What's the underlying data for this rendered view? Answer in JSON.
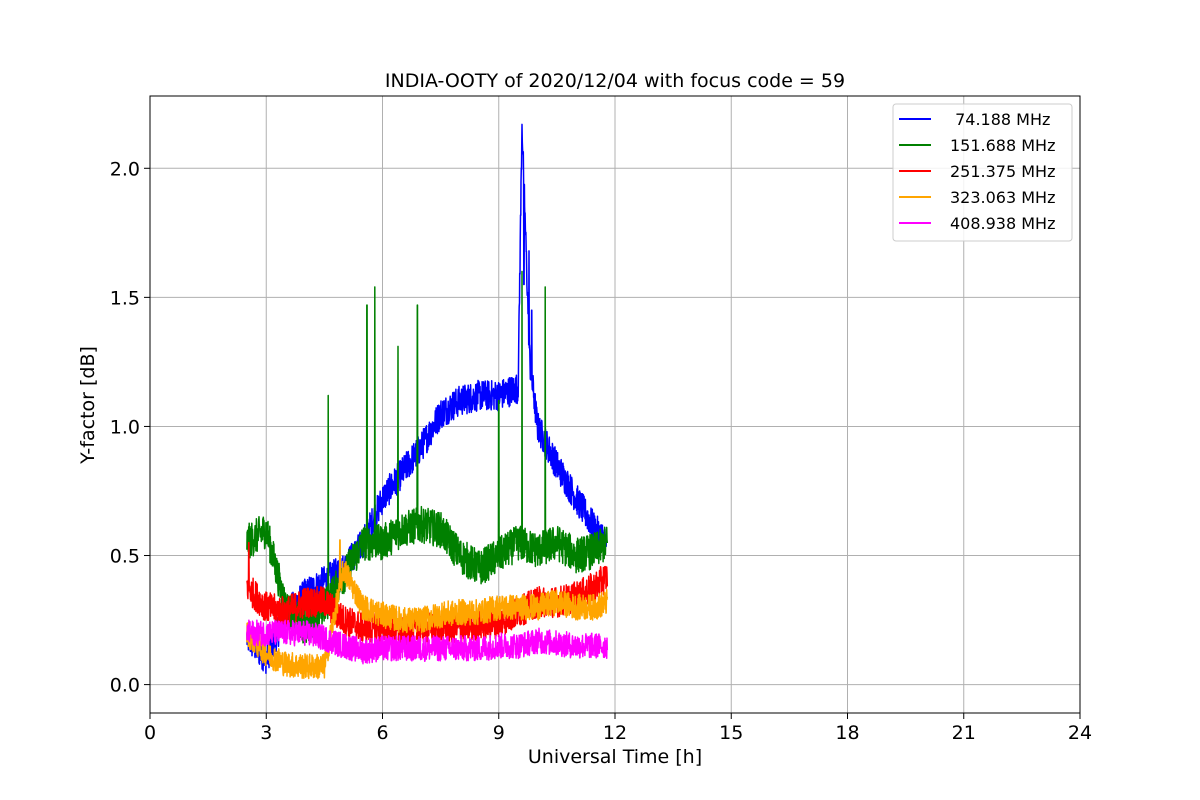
{
  "chart_data": {
    "type": "line",
    "title": "INDIA-OOTY of 2020/12/04 with focus code = 59",
    "xlabel": "Universal Time [h]",
    "ylabel": "Y-factor [dB]",
    "xlim": [
      0,
      24
    ],
    "ylim": [
      -0.11,
      2.28
    ],
    "xticks": [
      "0",
      "3",
      "6",
      "9",
      "12",
      "15",
      "18",
      "21",
      "24"
    ],
    "yticks": [
      "0.0",
      "0.5",
      "1.0",
      "1.5",
      "2.0"
    ],
    "grid": true,
    "legend_position": "top-right",
    "series": [
      {
        "name": " 74.188 MHz",
        "color": "#0000ff",
        "x": [
          2.5,
          3.0,
          3.5,
          4.0,
          4.5,
          5.0,
          5.5,
          6.0,
          6.5,
          7.0,
          7.5,
          8.0,
          8.5,
          9.0,
          9.5,
          9.6,
          9.8,
          10.0,
          10.5,
          11.0,
          11.5,
          11.8
        ],
        "y": [
          0.18,
          0.1,
          0.27,
          0.35,
          0.4,
          0.45,
          0.55,
          0.72,
          0.82,
          0.92,
          1.05,
          1.1,
          1.12,
          1.12,
          1.15,
          2.17,
          1.25,
          1.0,
          0.85,
          0.72,
          0.6,
          0.55
        ],
        "spikes": [
          [
            9.6,
            2.17
          ],
          [
            9.78,
            1.68
          ],
          [
            9.65,
            1.55
          ],
          [
            9.85,
            1.45
          ]
        ]
      },
      {
        "name": "151.688 MHz",
        "color": "#008000",
        "x": [
          2.5,
          3.0,
          3.5,
          4.0,
          4.5,
          5.0,
          5.5,
          6.0,
          6.5,
          7.0,
          7.5,
          8.0,
          8.5,
          9.0,
          9.5,
          10.0,
          10.5,
          11.0,
          11.5,
          11.8
        ],
        "y": [
          0.55,
          0.6,
          0.3,
          0.22,
          0.3,
          0.42,
          0.55,
          0.55,
          0.6,
          0.62,
          0.6,
          0.5,
          0.45,
          0.5,
          0.55,
          0.52,
          0.55,
          0.5,
          0.52,
          0.55
        ],
        "spikes": [
          [
            5.8,
            1.54
          ],
          [
            5.6,
            1.47
          ],
          [
            6.9,
            1.47
          ],
          [
            10.2,
            1.54
          ],
          [
            9.6,
            1.6
          ],
          [
            4.6,
            1.12
          ],
          [
            6.4,
            1.31
          ],
          [
            9.0,
            1.1
          ]
        ]
      },
      {
        "name": "251.375 MHz",
        "color": "#ff0000",
        "x": [
          2.5,
          3.0,
          3.5,
          4.0,
          4.5,
          5.0,
          5.5,
          6.0,
          6.5,
          7.0,
          7.5,
          8.0,
          8.5,
          9.0,
          9.5,
          10.0,
          10.5,
          11.0,
          11.5,
          11.8
        ],
        "y": [
          0.38,
          0.3,
          0.28,
          0.32,
          0.32,
          0.25,
          0.22,
          0.22,
          0.2,
          0.22,
          0.22,
          0.22,
          0.23,
          0.24,
          0.28,
          0.32,
          0.32,
          0.34,
          0.38,
          0.42
        ],
        "spikes": [
          [
            2.55,
            0.55
          ]
        ]
      },
      {
        "name": "323.063 MHz",
        "color": "#ffa500",
        "x": [
          2.5,
          3.0,
          3.5,
          4.0,
          4.5,
          5.0,
          5.5,
          6.0,
          6.5,
          7.0,
          7.5,
          8.0,
          8.5,
          9.0,
          9.5,
          10.0,
          10.5,
          11.0,
          11.5,
          11.8
        ],
        "y": [
          0.2,
          0.12,
          0.08,
          0.07,
          0.07,
          0.45,
          0.3,
          0.27,
          0.25,
          0.25,
          0.27,
          0.28,
          0.28,
          0.3,
          0.3,
          0.3,
          0.32,
          0.3,
          0.3,
          0.32
        ],
        "spikes": [
          [
            4.9,
            0.56
          ]
        ]
      },
      {
        "name": "408.938 MHz",
        "color": "#ff00ff",
        "x": [
          2.5,
          3.0,
          3.5,
          4.0,
          4.5,
          5.0,
          5.5,
          6.0,
          6.5,
          7.0,
          7.5,
          8.0,
          8.5,
          9.0,
          9.5,
          10.0,
          10.5,
          11.0,
          11.5,
          11.8
        ],
        "y": [
          0.2,
          0.2,
          0.2,
          0.2,
          0.18,
          0.15,
          0.13,
          0.14,
          0.14,
          0.14,
          0.14,
          0.14,
          0.14,
          0.15,
          0.15,
          0.17,
          0.16,
          0.15,
          0.15,
          0.15
        ],
        "spikes": []
      }
    ]
  }
}
